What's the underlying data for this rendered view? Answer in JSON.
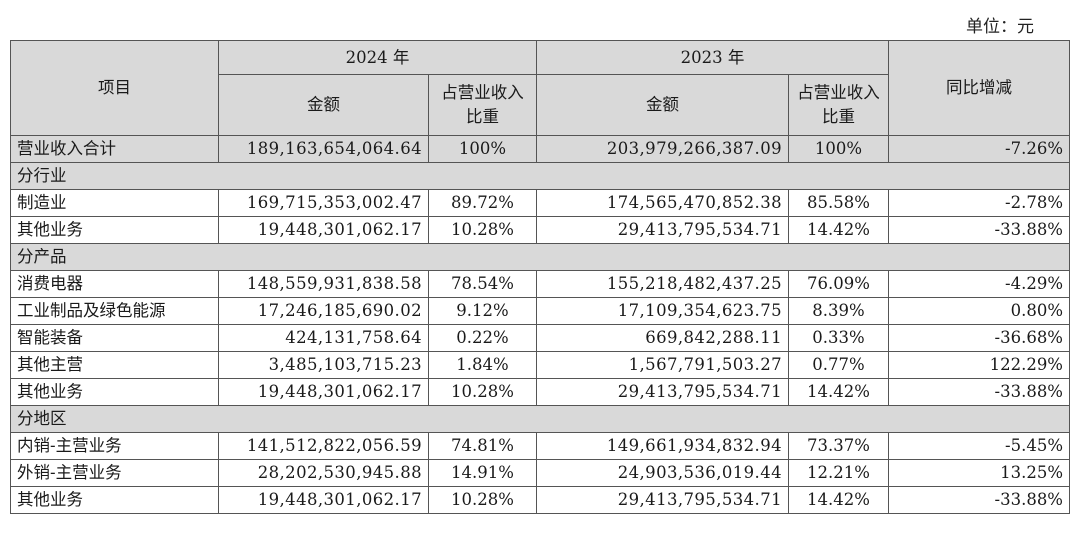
{
  "unit_label": "单位：元",
  "header": {
    "item": "项目",
    "year_2024": "2024 年",
    "year_2023": "2023 年",
    "amount": "金额",
    "share": "占营业收入比重",
    "yoy": "同比增减"
  },
  "total": {
    "label": "营业收入合计",
    "amt_2024": "189,163,654,064.64",
    "pct_2024": "100%",
    "amt_2023": "203,979,266,387.09",
    "pct_2023": "100%",
    "yoy": "-7.26%"
  },
  "sections": [
    {
      "title": "分行业",
      "rows": [
        {
          "label": "制造业",
          "amt_2024": "169,715,353,002.47",
          "pct_2024": "89.72%",
          "amt_2023": "174,565,470,852.38",
          "pct_2023": "85.58%",
          "yoy": "-2.78%"
        },
        {
          "label": "其他业务",
          "amt_2024": "19,448,301,062.17",
          "pct_2024": "10.28%",
          "amt_2023": "29,413,795,534.71",
          "pct_2023": "14.42%",
          "yoy": "-33.88%"
        }
      ]
    },
    {
      "title": "分产品",
      "rows": [
        {
          "label": "消费电器",
          "amt_2024": "148,559,931,838.58",
          "pct_2024": "78.54%",
          "amt_2023": "155,218,482,437.25",
          "pct_2023": "76.09%",
          "yoy": "-4.29%"
        },
        {
          "label": "工业制品及绿色能源",
          "amt_2024": "17,246,185,690.02",
          "pct_2024": "9.12%",
          "amt_2023": "17,109,354,623.75",
          "pct_2023": "8.39%",
          "yoy": "0.80%"
        },
        {
          "label": "智能装备",
          "amt_2024": "424,131,758.64",
          "pct_2024": "0.22%",
          "amt_2023": "669,842,288.11",
          "pct_2023": "0.33%",
          "yoy": "-36.68%"
        },
        {
          "label": "其他主营",
          "amt_2024": "3,485,103,715.23",
          "pct_2024": "1.84%",
          "amt_2023": "1,567,791,503.27",
          "pct_2023": "0.77%",
          "yoy": "122.29%"
        },
        {
          "label": "其他业务",
          "amt_2024": "19,448,301,062.17",
          "pct_2024": "10.28%",
          "amt_2023": "29,413,795,534.71",
          "pct_2023": "14.42%",
          "yoy": "-33.88%"
        }
      ]
    },
    {
      "title": "分地区",
      "rows": [
        {
          "label": "内销-主营业务",
          "amt_2024": "141,512,822,056.59",
          "pct_2024": "74.81%",
          "amt_2023": "149,661,934,832.94",
          "pct_2023": "73.37%",
          "yoy": "-5.45%"
        },
        {
          "label": "外销-主营业务",
          "amt_2024": "28,202,530,945.88",
          "pct_2024": "14.91%",
          "amt_2023": "24,903,536,019.44",
          "pct_2023": "12.21%",
          "yoy": "13.25%"
        },
        {
          "label": "其他业务",
          "amt_2024": "19,448,301,062.17",
          "pct_2024": "10.28%",
          "amt_2023": "29,413,795,534.71",
          "pct_2023": "14.42%",
          "yoy": "-33.88%"
        }
      ]
    }
  ]
}
